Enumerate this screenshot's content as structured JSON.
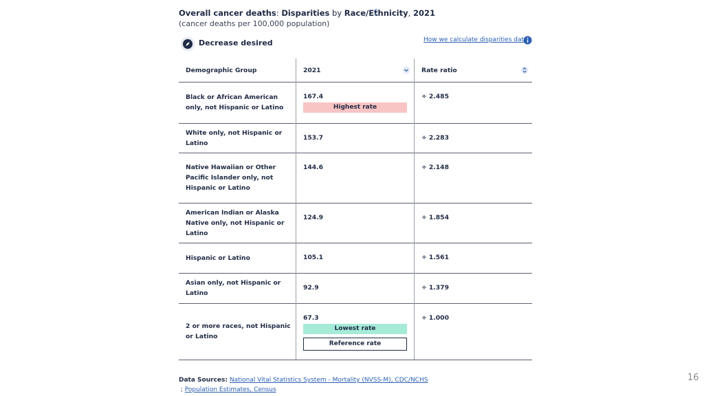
{
  "header": {
    "title_parts": [
      {
        "text": "Overall cancer deaths",
        "bold": true
      },
      {
        "text": ": ",
        "bold": false
      },
      {
        "text": "Disparities",
        "bold": true
      },
      {
        "text": " by ",
        "bold": false
      },
      {
        "text": "Race/Ethnicity",
        "bold": true
      },
      {
        "text": ", ",
        "bold": false
      },
      {
        "text": "2021",
        "bold": true
      }
    ],
    "subtitle": "(cancer deaths per 100,000 population)",
    "direction": "Decrease desired",
    "link": "How we calculate disparities data"
  },
  "table": {
    "columns": [
      "Demographic Group",
      "2021",
      "Rate ratio"
    ],
    "rows": [
      {
        "group": "Black or African American only, not Hispanic or Latino",
        "value": "167.4",
        "ratio": "÷ 2.485",
        "badges": [
          "Highest rate"
        ]
      },
      {
        "group": "White only, not Hispanic or Latino",
        "value": "153.7",
        "ratio": "÷ 2.283",
        "badges": []
      },
      {
        "group": "Native Hawaiian or Other Pacific Islander only, not Hispanic or Latino",
        "value": "144.6",
        "ratio": "÷ 2.148",
        "badges": []
      },
      {
        "group": "American Indian or Alaska Native only, not Hispanic or Latino",
        "value": "124.9",
        "ratio": "÷ 1.854",
        "badges": []
      },
      {
        "group": "Hispanic or Latino",
        "value": "105.1",
        "ratio": "÷ 1.561",
        "badges": []
      },
      {
        "group": "Asian only, not Hispanic or Latino",
        "value": "92.9",
        "ratio": "÷ 1.379",
        "badges": []
      },
      {
        "group": "2 or more races, not Hispanic or Latino",
        "value": "67.3",
        "ratio": "÷ 1.000",
        "badges": [
          "Lowest rate",
          "Reference rate"
        ]
      }
    ]
  },
  "sources": {
    "label": "Data Sources:",
    "links": [
      "National Vital Statistics System - Mortality (NVSS-M), CDC/NCHS",
      "Population Estimates, Census"
    ],
    "separator": " ; "
  },
  "page_number": "16"
}
